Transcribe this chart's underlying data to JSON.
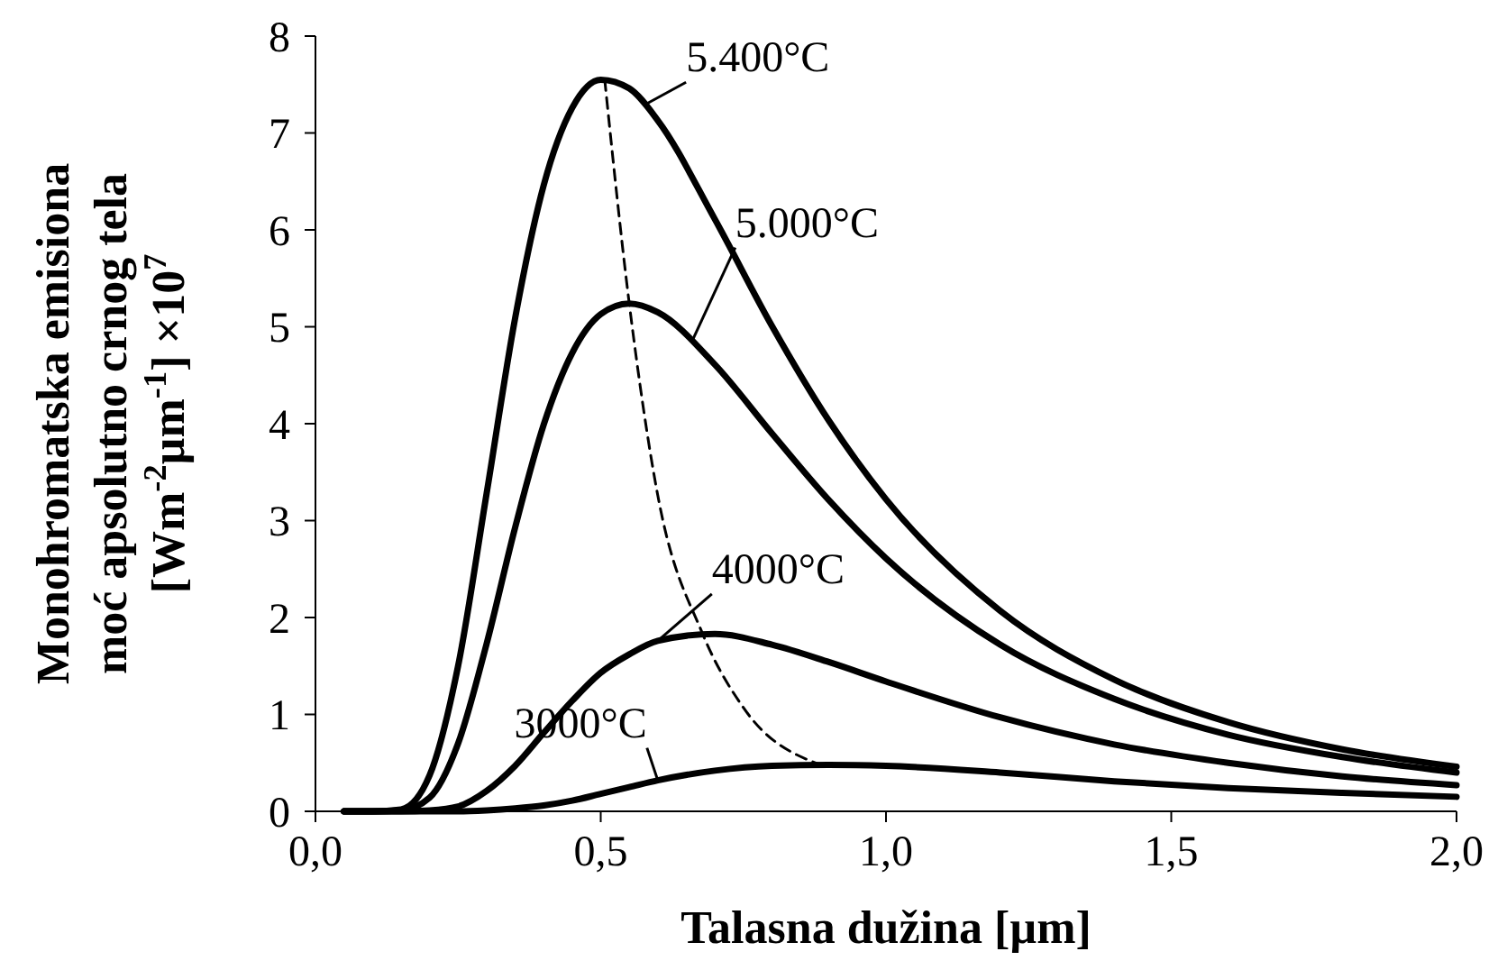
{
  "chart_data": {
    "type": "line",
    "xlabel": "Talasna dužina [µm]",
    "ylabel": "Monohromatska emisiona\nmoć apsolutno  crnog tela\n[Wm$^{-2}$µm$^{-1}$] ×10$^{7}$",
    "xlim": [
      0,
      2
    ],
    "xticks": [
      {
        "value": 0,
        "label": "0,0"
      },
      {
        "value": 0.5,
        "label": "0,5"
      },
      {
        "value": 1,
        "label": "1,0"
      },
      {
        "value": 1.5,
        "label": "1,5"
      },
      {
        "value": 2,
        "label": "2,0"
      }
    ],
    "ylim": [
      0,
      8
    ],
    "yticks": [
      0,
      1,
      2,
      3,
      4,
      5,
      6,
      7,
      8
    ],
    "grid": false,
    "marker": "none",
    "x": [
      0.05,
      0.1,
      0.15,
      0.2,
      0.25,
      0.3,
      0.35,
      0.4,
      0.45,
      0.5,
      0.55,
      0.6,
      0.7,
      0.8,
      0.9,
      1.0,
      1.2,
      1.4,
      1.6,
      1.8,
      2.0
    ],
    "series": [
      {
        "color": "#000000",
        "line_style": "solid",
        "values": [
          0,
          0,
          0.02,
          0.37,
          1.5,
          3.28,
          5.09,
          6.46,
          7.26,
          7.55,
          7.46,
          7.13,
          6.11,
          5.01,
          4.03,
          3.22,
          2.07,
          1.36,
          0.92,
          0.64,
          0.46
        ]
      },
      {
        "color": "#000000",
        "line_style": "solid",
        "values": [
          0,
          0,
          0.01,
          0.14,
          0.7,
          1.73,
          2.93,
          3.99,
          4.73,
          5.13,
          5.24,
          5.15,
          4.61,
          3.9,
          3.21,
          2.61,
          1.72,
          1.16,
          0.79,
          0.56,
          0.4
        ]
      },
      {
        "color": "#000000",
        "line_style": "solid",
        "values": [
          0,
          0,
          0,
          0.01,
          0.05,
          0.21,
          0.47,
          0.81,
          1.14,
          1.43,
          1.62,
          1.76,
          1.83,
          1.72,
          1.54,
          1.34,
          0.97,
          0.69,
          0.5,
          0.36,
          0.27
        ]
      },
      {
        "color": "#000000",
        "line_style": "solid",
        "values": [
          0,
          0,
          0,
          0,
          0,
          0.01,
          0.03,
          0.06,
          0.11,
          0.18,
          0.25,
          0.32,
          0.42,
          0.47,
          0.48,
          0.47,
          0.4,
          0.31,
          0.24,
          0.19,
          0.15
        ]
      },
      {
        "color": "#000000",
        "line_style": "dashed",
        "x": [
          0.507,
          0.55,
          0.6,
          0.678,
          0.75,
          0.885
        ],
        "values": [
          7.55,
          5.24,
          3.26,
          1.84,
          1.07,
          0.48
        ]
      }
    ],
    "annotations": [
      {
        "text": "5.400°C",
        "x": 0.58,
        "y": 7.3
      },
      {
        "text": "5.000°C",
        "x": 0.66,
        "y": 4.85
      },
      {
        "text": "4000°C",
        "x": 0.6,
        "y": 1.76
      },
      {
        "text": "3000°C",
        "x": 0.6,
        "y": 0.32
      }
    ]
  }
}
